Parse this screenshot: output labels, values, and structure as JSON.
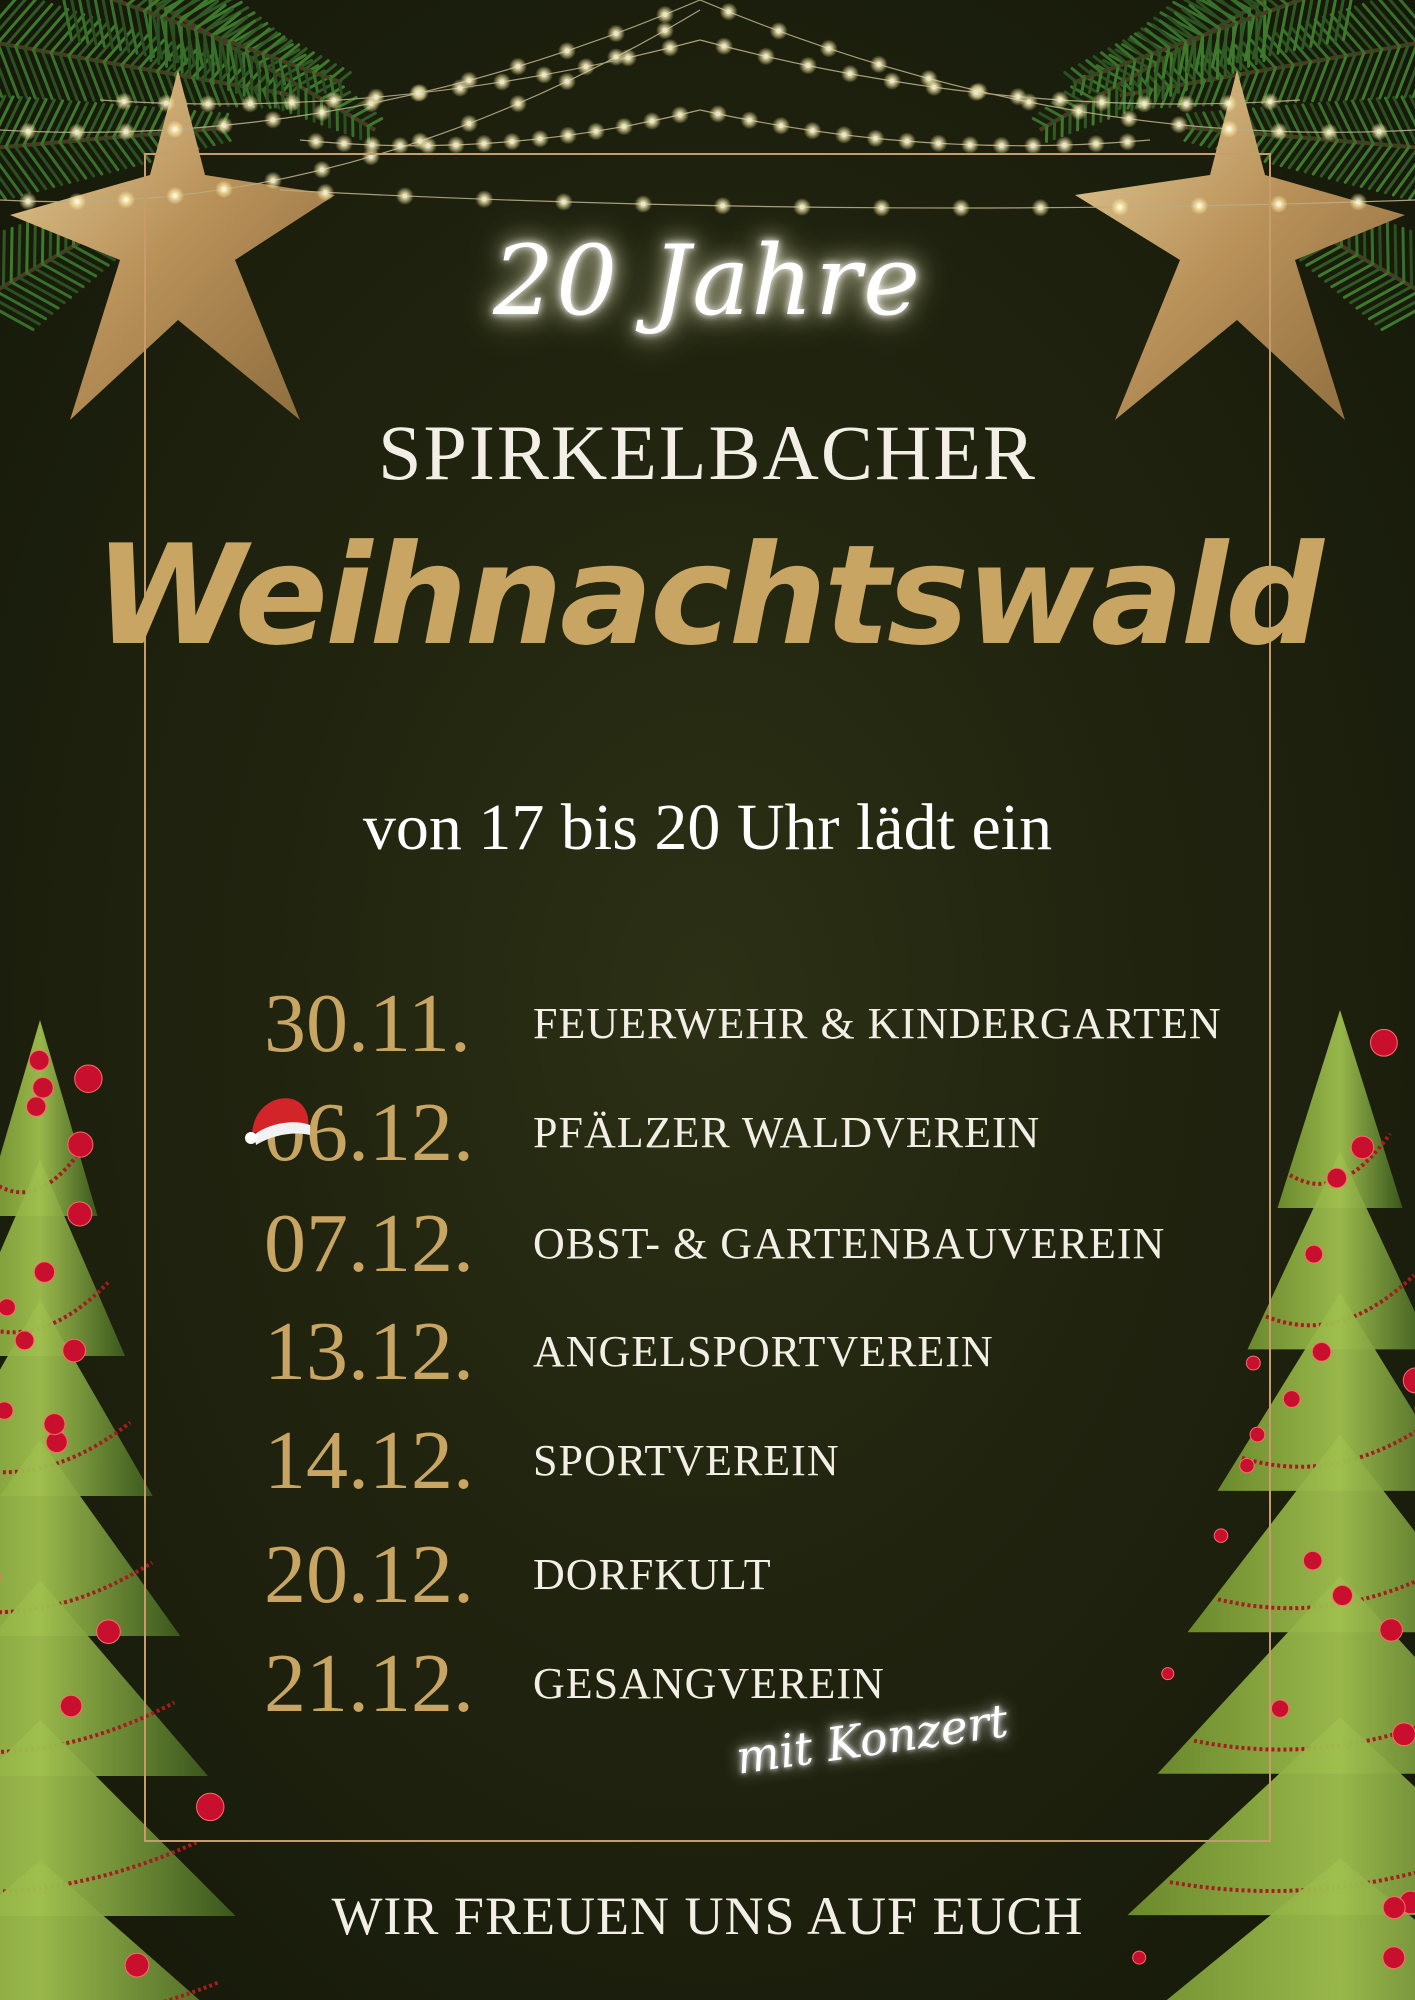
{
  "poster": {
    "anniversary": "20 Jahre",
    "subtitle": "SPIRKELBACHER",
    "title": "Weihnachtswald",
    "time_line": "von 17 bis 20 Uhr lädt ein",
    "schedule": [
      {
        "date": "30.11.",
        "host": "FEUERWEHR & KINDERGARTEN"
      },
      {
        "date": "06.12.",
        "host": "PFÄLZER WALDVEREIN"
      },
      {
        "date": "07.12.",
        "host": "OBST- & GARTENBAUVEREIN"
      },
      {
        "date": "13.12.",
        "host": "ANGELSPORTVEREIN"
      },
      {
        "date": "14.12.",
        "host": "SPORTVEREIN"
      },
      {
        "date": "20.12.",
        "host": "DORFKULT"
      },
      {
        "date": "21.12.",
        "host": "GESANGVEREIN"
      }
    ],
    "note": "mit Konzert",
    "footer": "WIR FREUEN UNS AUF EUCH"
  },
  "colors": {
    "background": "#20240f",
    "gold": "#c9a564",
    "frame": "#c99a6a",
    "text": "#f3efe6",
    "ornament": "#c8102e"
  },
  "icons": [
    "fir-branch-icon",
    "gold-star-icon",
    "string-lights-icon",
    "christmas-tree-icon",
    "santa-hat-icon"
  ]
}
